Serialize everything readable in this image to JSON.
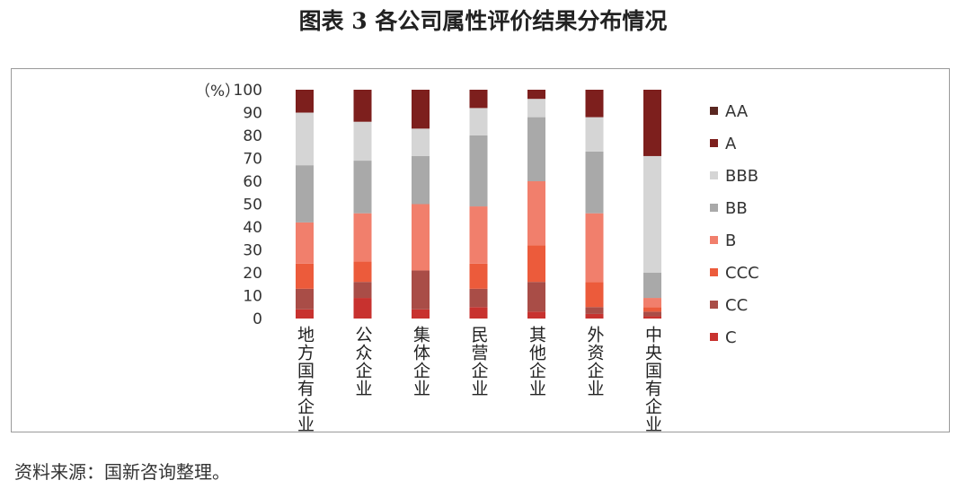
{
  "header": {
    "title": "图表 3  各公司属性评价结果分布情况"
  },
  "footer": {
    "source": "资料来源：国新咨询整理。"
  },
  "chart_data": {
    "type": "bar",
    "stacked": true,
    "y_unit": "（%）",
    "ylim": [
      0,
      100
    ],
    "yticks": [
      0,
      10,
      20,
      30,
      40,
      50,
      60,
      70,
      80,
      90,
      100
    ],
    "categories": [
      "地方国有企业",
      "公众企业",
      "集体企业",
      "民营企业",
      "其他企业",
      "外资企业",
      "中央国有企业"
    ],
    "series": [
      {
        "name": "C",
        "color": "#c8322f",
        "values": [
          4,
          9,
          4,
          5,
          3,
          2,
          1
        ]
      },
      {
        "name": "CC",
        "color": "#a94d47",
        "values": [
          9,
          7,
          17,
          8,
          13,
          3,
          2
        ]
      },
      {
        "name": "CCC",
        "color": "#ec5b3b",
        "values": [
          11,
          9,
          0,
          11,
          16,
          11,
          2
        ]
      },
      {
        "name": "B",
        "color": "#f17f6c",
        "values": [
          18,
          21,
          29,
          25,
          28,
          30,
          4
        ]
      },
      {
        "name": "BB",
        "color": "#a9a9a9",
        "values": [
          25,
          23,
          21,
          31,
          28,
          27,
          11
        ]
      },
      {
        "name": "BBB",
        "color": "#d5d5d5",
        "values": [
          23,
          17,
          12,
          12,
          8,
          15,
          51
        ]
      },
      {
        "name": "A",
        "color": "#7d1f1d",
        "values": [
          10,
          14,
          17,
          8,
          4,
          12,
          29
        ]
      },
      {
        "name": "AA",
        "color": "#5a2721",
        "values": [
          0,
          0,
          0,
          0,
          0,
          0,
          0
        ]
      }
    ],
    "legend_order": [
      "AA",
      "A",
      "BBB",
      "BB",
      "B",
      "CCC",
      "CC",
      "C"
    ],
    "legend_position": "right",
    "grid": false
  }
}
